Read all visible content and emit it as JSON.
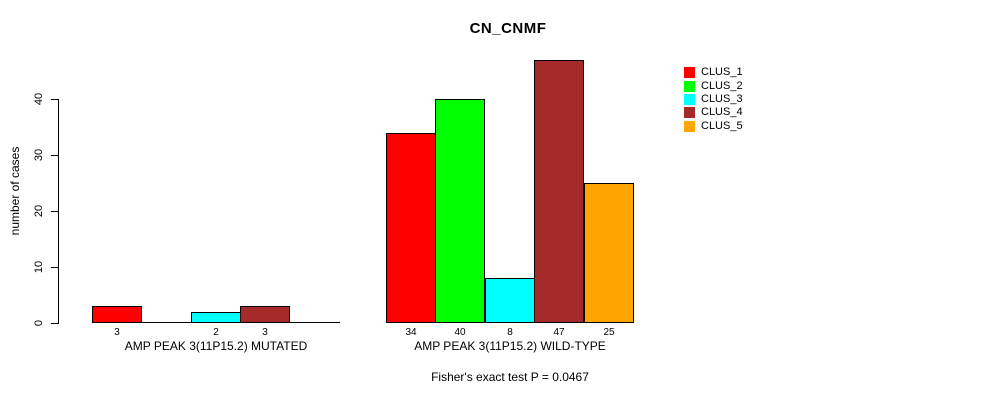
{
  "chart_data": {
    "type": "bar",
    "title": "CN_CNMF",
    "ylabel": "number of cases",
    "xlabel": "",
    "yticks": [
      0,
      10,
      20,
      30,
      40
    ],
    "ylim": [
      0,
      47
    ],
    "grid": false,
    "legend_position": "right",
    "legend": [
      {
        "label": "CLUS_1",
        "color": "#FF0000"
      },
      {
        "label": "CLUS_2",
        "color": "#00FF00"
      },
      {
        "label": "CLUS_3",
        "color": "#00FFFF"
      },
      {
        "label": "CLUS_4",
        "color": "#A52A2A"
      },
      {
        "label": "CLUS_5",
        "color": "#FFA500"
      }
    ],
    "bar_colors": [
      "#FF0000",
      "#00FF00",
      "#00FFFF",
      "#A52A2A",
      "#FFA500"
    ],
    "groups": [
      {
        "label": "AMP PEAK 3(11P15.2) MUTATED",
        "values": [
          3,
          0,
          2,
          3,
          0
        ],
        "bar_labels": [
          "3",
          "",
          "2",
          "3",
          ""
        ]
      },
      {
        "label": "AMP PEAK 3(11P15.2) WILD-TYPE",
        "values": [
          34,
          40,
          8,
          47,
          25
        ],
        "bar_labels": [
          "34",
          "40",
          "8",
          "47",
          "25"
        ]
      }
    ],
    "annotation": "Fisher's exact test P = 0.0467",
    "axis_color": "#000000",
    "text_color": "#000000",
    "background_color": "#FFFFFF"
  }
}
